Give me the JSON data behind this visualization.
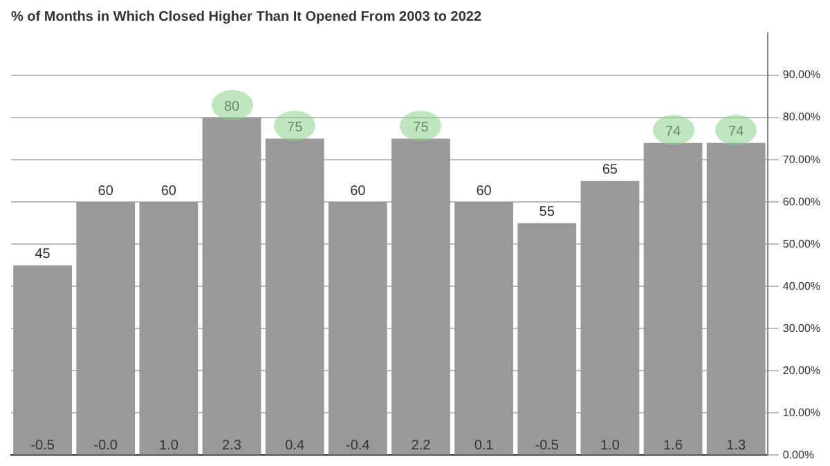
{
  "chart_data": {
    "type": "bar",
    "title": "% of Months in Which Closed Higher Than It Opened From 2003 to 2022",
    "categories": [
      null,
      null,
      null,
      null,
      null,
      null,
      null,
      null,
      null,
      null,
      null,
      null
    ],
    "values": [
      45,
      60,
      60,
      80,
      75,
      60,
      75,
      60,
      55,
      65,
      74,
      74
    ],
    "color": "#999999",
    "data_labels": true,
    "grid": "y",
    "legend": false,
    "ylim": [
      0,
      100
    ],
    "yticks": [
      {
        "value": 0,
        "label": "0.00%"
      },
      {
        "value": 10,
        "label": "10.00%"
      },
      {
        "value": 20,
        "label": "20.00%"
      },
      {
        "value": 30,
        "label": "30.00%"
      },
      {
        "value": 40,
        "label": "40.00%"
      },
      {
        "value": 50,
        "label": "50.00%"
      },
      {
        "value": 60,
        "label": "60.00%"
      },
      {
        "value": 70,
        "label": "70.00%"
      },
      {
        "value": 80,
        "label": "80.00%"
      },
      {
        "value": 90,
        "label": "90.00%"
      }
    ],
    "annotations": [
      {
        "text": "-0.5",
        "y": 0
      },
      {
        "text": "-0.0",
        "y": 0
      },
      {
        "text": "1.0",
        "y": 0
      },
      {
        "text": "2.3",
        "y": 0
      },
      {
        "text": "0.4",
        "y": 0
      },
      {
        "text": "-0.4",
        "y": 0
      },
      {
        "text": "2.2",
        "y": 0
      },
      {
        "text": "0.1",
        "y": 0
      },
      {
        "text": "-0.5",
        "y": 0
      },
      {
        "text": "1.0",
        "y": 0
      },
      {
        "text": "1.6",
        "y": 0
      },
      {
        "text": "1.3",
        "y": 0
      }
    ]
  }
}
